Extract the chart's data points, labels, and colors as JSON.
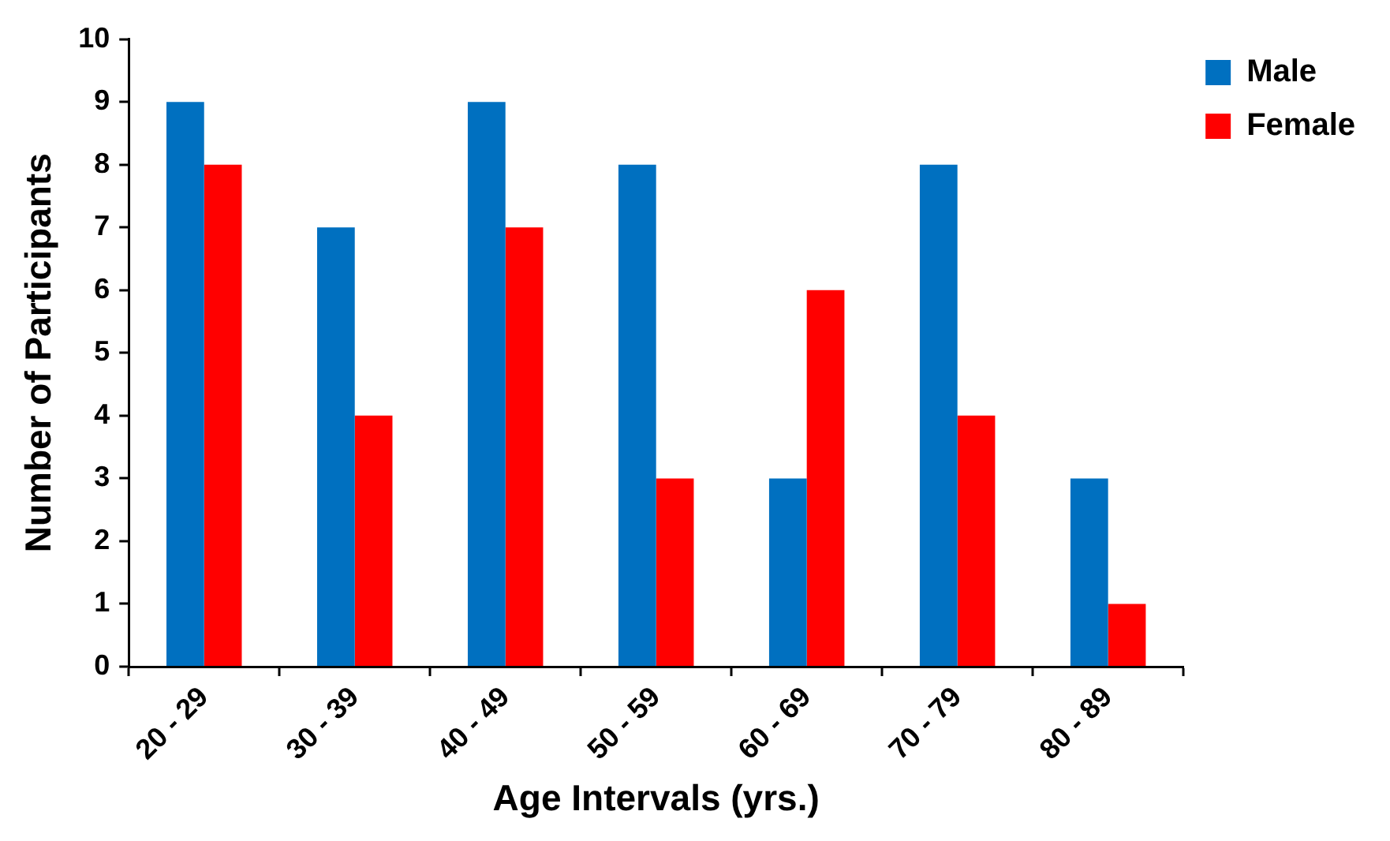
{
  "chart_data": {
    "type": "bar",
    "xlabel": "Age Intervals (yrs.)",
    "ylabel": "Number of Participants",
    "categories": [
      "20 - 29",
      "30 - 39",
      "40 - 49",
      "50 - 59",
      "60 - 69",
      "70 - 79",
      "80 - 89"
    ],
    "series": [
      {
        "name": "Male",
        "color": "#0070c0",
        "values": [
          9,
          7,
          9,
          8,
          3,
          8,
          3
        ]
      },
      {
        "name": "Female",
        "color": "#ff0000",
        "values": [
          8,
          4,
          7,
          3,
          6,
          4,
          1
        ]
      }
    ],
    "ylim": [
      0,
      10
    ],
    "yticks": [
      0,
      1,
      2,
      3,
      4,
      5,
      6,
      7,
      8,
      9,
      10
    ],
    "grid": false,
    "legend": "top right"
  }
}
